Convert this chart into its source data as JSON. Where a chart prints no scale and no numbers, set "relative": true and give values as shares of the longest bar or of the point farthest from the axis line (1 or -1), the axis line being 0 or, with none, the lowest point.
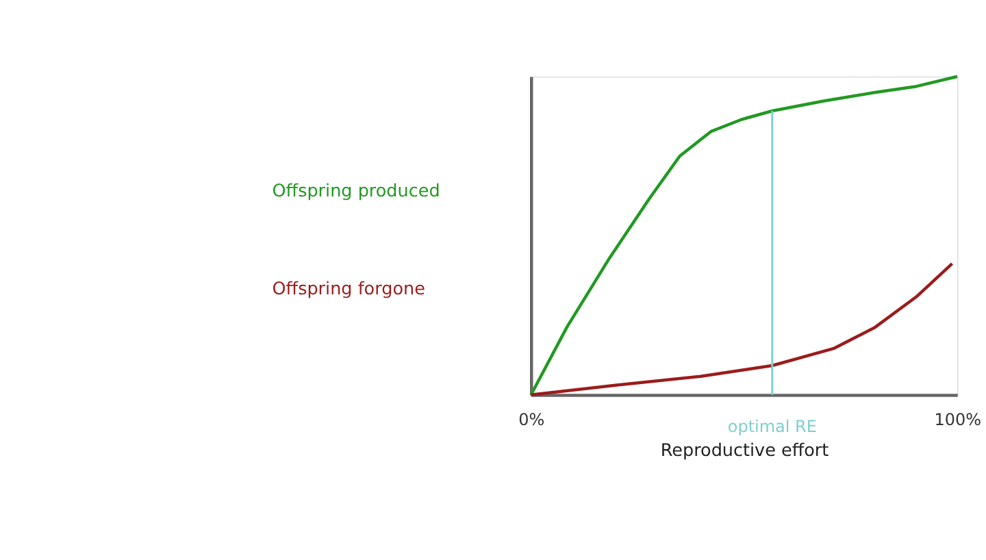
{
  "chart_data": {
    "type": "line",
    "relative": true,
    "xlabel": "Reproductive effort",
    "xlim": [
      0,
      100
    ],
    "xticks": [
      {
        "value": 0,
        "label": "0%"
      },
      {
        "value": 100,
        "label": "100%"
      }
    ],
    "series": [
      {
        "name": "Offspring produced",
        "color": "#229922",
        "x": [
          0,
          8.4,
          18.1,
          27.7,
          34.9,
          42.2,
          49.4,
          56.6,
          68.7,
          80.7,
          90.4,
          100
        ],
        "values": [
          0,
          0.212,
          0.423,
          0.615,
          0.75,
          0.827,
          0.865,
          0.892,
          0.923,
          0.95,
          0.969,
          1
        ]
      },
      {
        "name": "Offspring forgone",
        "color": "#9b1c1c",
        "x": [
          0,
          20.5,
          39.8,
          56.6,
          71.1,
          80.7,
          90.4,
          98.8
        ],
        "values": [
          0,
          0.031,
          0.058,
          0.092,
          0.146,
          0.212,
          0.308,
          0.412
        ]
      }
    ],
    "ref_lines": [
      {
        "axis": "x",
        "value": 56.6,
        "label": "optimal RE",
        "color": "#7fcfcf"
      }
    ],
    "grid": false,
    "legend": false,
    "marker": "none",
    "line_style": "solid"
  }
}
